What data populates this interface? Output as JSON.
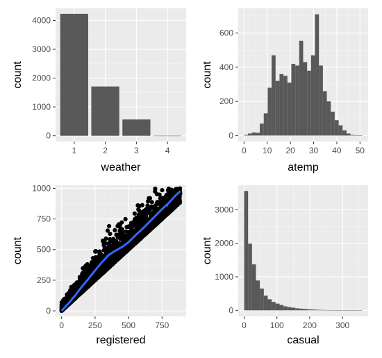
{
  "chart_data": [
    {
      "id": "weather",
      "type": "bar",
      "xlabel": "weather",
      "ylabel": "count",
      "categories": [
        "1",
        "2",
        "3",
        "4"
      ],
      "x": [
        1,
        2,
        3,
        4
      ],
      "values": [
        4230,
        1710,
        565,
        1
      ],
      "xlim": [
        0.4,
        4.6
      ],
      "ylim": [
        -200,
        4420
      ],
      "xticks": [
        1,
        2,
        3,
        4
      ],
      "yticks": [
        0,
        1000,
        2000,
        3000,
        4000
      ],
      "grid": true
    },
    {
      "id": "atemp",
      "type": "bar",
      "xlabel": "atemp",
      "ylabel": "count",
      "bins": [
        [
          0.0,
          1.7,
          4
        ],
        [
          1.7,
          3.4,
          12
        ],
        [
          3.4,
          5.1,
          18
        ],
        [
          5.1,
          6.8,
          16
        ],
        [
          6.8,
          8.5,
          70
        ],
        [
          8.5,
          10.2,
          130
        ],
        [
          10.2,
          11.9,
          280
        ],
        [
          11.9,
          13.6,
          470
        ],
        [
          13.6,
          15.3,
          320
        ],
        [
          15.3,
          17.0,
          360
        ],
        [
          17.0,
          18.7,
          350
        ],
        [
          18.7,
          20.4,
          310
        ],
        [
          20.4,
          22.1,
          420
        ],
        [
          22.1,
          23.8,
          410
        ],
        [
          23.8,
          25.5,
          555
        ],
        [
          25.5,
          27.2,
          430
        ],
        [
          27.2,
          28.9,
          380
        ],
        [
          28.9,
          30.6,
          470
        ],
        [
          30.6,
          32.3,
          710
        ],
        [
          32.3,
          34.0,
          410
        ],
        [
          34.0,
          35.7,
          260
        ],
        [
          35.7,
          37.4,
          200
        ],
        [
          37.4,
          39.1,
          140
        ],
        [
          39.1,
          40.8,
          90
        ],
        [
          40.8,
          42.5,
          60
        ],
        [
          42.5,
          44.2,
          30
        ],
        [
          44.2,
          45.9,
          12
        ],
        [
          45.9,
          47.6,
          4
        ],
        [
          47.6,
          49.3,
          1
        ],
        [
          49.3,
          51.0,
          1
        ]
      ],
      "xlim": [
        -2.5,
        53.5
      ],
      "ylim": [
        -35,
        745
      ],
      "xticks": [
        0,
        10,
        20,
        30,
        40,
        50
      ],
      "yticks": [
        0,
        200,
        400,
        600
      ],
      "grid": true
    },
    {
      "id": "registered",
      "type": "scatter",
      "xlabel": "registered",
      "ylabel": "count",
      "xlim": [
        -45,
        930
      ],
      "ylim": [
        -45,
        1025
      ],
      "xticks": [
        0,
        250,
        500,
        750
      ],
      "yticks": [
        0,
        250,
        500,
        750,
        1000
      ],
      "smooth": {
        "x": [
          0,
          50,
          100,
          150,
          200,
          250,
          300,
          350,
          400,
          450,
          500,
          550,
          600,
          650,
          700,
          750,
          800,
          850,
          886
        ],
        "y": [
          0,
          60,
          125,
          195,
          260,
          330,
          395,
          455,
          490,
          520,
          560,
          615,
          665,
          720,
          775,
          830,
          880,
          940,
          977
        ]
      },
      "grid": true
    },
    {
      "id": "casual",
      "type": "bar",
      "xlabel": "casual",
      "ylabel": "count",
      "bins": [
        [
          0,
          12,
          3560
        ],
        [
          12,
          24,
          1990
        ],
        [
          24,
          36,
          1370
        ],
        [
          36,
          48,
          890
        ],
        [
          48,
          60,
          650
        ],
        [
          60,
          72,
          440
        ],
        [
          72,
          84,
          330
        ],
        [
          84,
          96,
          250
        ],
        [
          96,
          108,
          200
        ],
        [
          108,
          120,
          160
        ],
        [
          120,
          132,
          120
        ],
        [
          132,
          144,
          95
        ],
        [
          144,
          156,
          80
        ],
        [
          156,
          168,
          60
        ],
        [
          168,
          180,
          50
        ],
        [
          180,
          192,
          40
        ],
        [
          192,
          204,
          30
        ],
        [
          204,
          216,
          25
        ],
        [
          216,
          228,
          18
        ],
        [
          228,
          240,
          14
        ],
        [
          240,
          252,
          10
        ],
        [
          252,
          264,
          8
        ],
        [
          264,
          276,
          6
        ],
        [
          276,
          288,
          4
        ],
        [
          288,
          300,
          3
        ],
        [
          300,
          312,
          1
        ],
        [
          312,
          324,
          1
        ],
        [
          324,
          336,
          1
        ],
        [
          336,
          348,
          1
        ],
        [
          348,
          360,
          1
        ]
      ],
      "xlim": [
        -18,
        378
      ],
      "ylim": [
        -180,
        3730
      ],
      "xticks": [
        0,
        100,
        200,
        300
      ],
      "yticks": [
        0,
        1000,
        2000,
        3000
      ],
      "grid": true
    }
  ]
}
